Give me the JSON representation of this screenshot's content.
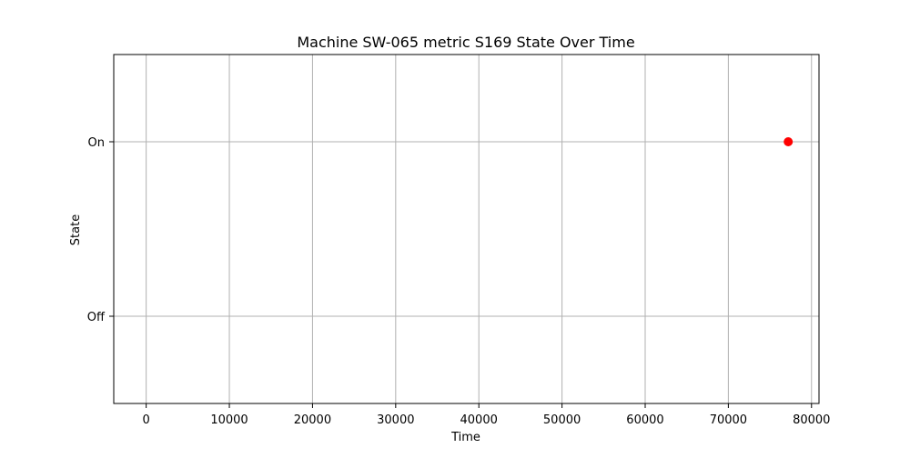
{
  "chart_data": {
    "type": "scatter",
    "title": "Machine SW-065 metric S169 State Over Time",
    "xlabel": "Time",
    "ylabel": "State",
    "xlim": [
      -3900,
      80900
    ],
    "ylim": [
      -0.5,
      1.5
    ],
    "x_ticks": [
      0,
      10000,
      20000,
      30000,
      40000,
      50000,
      60000,
      70000,
      80000
    ],
    "y_ticks": [
      {
        "value": 0,
        "label": "Off"
      },
      {
        "value": 1,
        "label": "On"
      }
    ],
    "grid": true,
    "legend": "none",
    "series": [
      {
        "color": "#ff0000",
        "points": [
          {
            "x": 77200,
            "y": 1
          }
        ]
      }
    ]
  }
}
